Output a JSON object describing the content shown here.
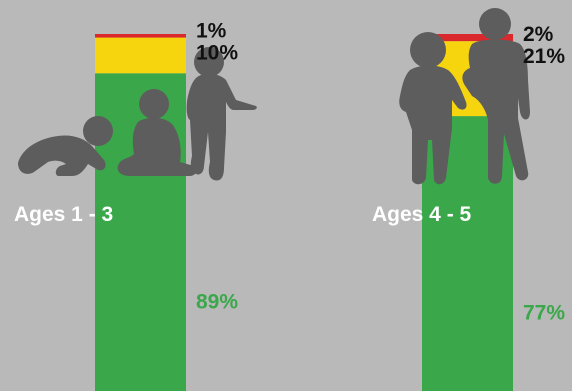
{
  "chart_data": {
    "type": "bar",
    "stacked": true,
    "orientation": "vertical",
    "categories": [
      "Ages 1 - 3",
      "Ages 4 - 5"
    ],
    "series": [
      {
        "key": "green",
        "color": "#3aa84a",
        "values": [
          89,
          77
        ],
        "labels": [
          "89%",
          "77%"
        ],
        "label_color": "#3aa84a"
      },
      {
        "key": "yellow",
        "color": "#f6d50f",
        "values": [
          10,
          21
        ],
        "labels": [
          "10%",
          "21%"
        ],
        "label_color": "#111111"
      },
      {
        "key": "red",
        "color": "#d9292d",
        "values": [
          1,
          2
        ],
        "labels": [
          "1%",
          "2%"
        ],
        "label_color": "#111111"
      }
    ],
    "ylim": [
      0,
      100
    ]
  },
  "colors": {
    "background": "#b9b9b9",
    "silhouette": "#5d5d5d",
    "group_label": "#ffffff"
  },
  "icons": [
    "crawling-baby-silhouette",
    "sitting-baby-silhouette",
    "standing-toddler-silhouette",
    "walking-child-silhouette",
    "older-child-silhouette"
  ]
}
